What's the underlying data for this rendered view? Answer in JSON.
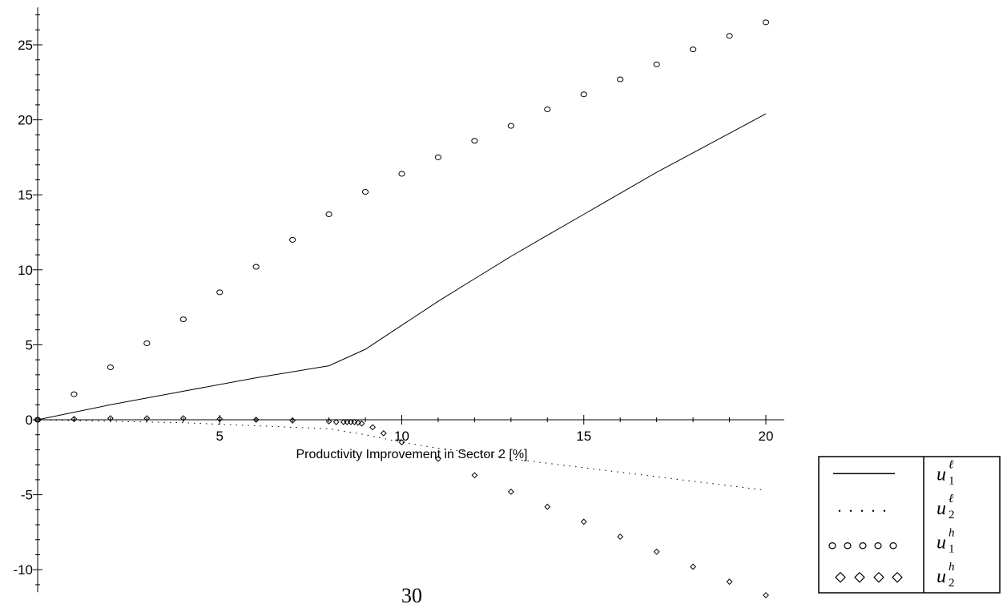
{
  "page_number": "30",
  "chart_data": {
    "type": "line",
    "xlabel": "Productivity Improvement in Sector 2 [%]",
    "ylabel": "",
    "xlim": [
      0,
      20.5
    ],
    "ylim": [
      -11.5,
      27.5
    ],
    "x_ticks": [
      5,
      10,
      15,
      20
    ],
    "y_ticks": [
      -10,
      -5,
      0,
      5,
      10,
      15,
      20,
      25
    ],
    "x_tick_labels": [
      "5",
      "10",
      "15",
      "20"
    ],
    "y_tick_labels": [
      "-10",
      "-5",
      "0",
      "5",
      "10",
      "15",
      "20",
      "25"
    ],
    "grid": false,
    "legend_position": "bottom-right",
    "series": [
      {
        "symbol": "u",
        "sub": "1",
        "sup": "ℓ",
        "style": "solid",
        "x": [
          0,
          2,
          4,
          6,
          8,
          9,
          10,
          11,
          12,
          13,
          14,
          15,
          16,
          17,
          18,
          19,
          20
        ],
        "y": [
          0,
          1.0,
          1.9,
          2.8,
          3.6,
          4.7,
          6.3,
          7.9,
          9.4,
          10.9,
          12.3,
          13.7,
          15.1,
          16.5,
          17.8,
          19.1,
          20.4
        ]
      },
      {
        "symbol": "u",
        "sub": "2",
        "sup": "ℓ",
        "style": "dotted",
        "x": [
          0,
          2,
          4,
          6,
          8,
          9,
          10,
          11,
          12,
          13,
          14,
          15,
          16,
          17,
          18,
          19,
          20
        ],
        "y": [
          0,
          -0.1,
          -0.2,
          -0.4,
          -0.6,
          -1.0,
          -1.5,
          -1.9,
          -2.2,
          -2.6,
          -2.9,
          -3.2,
          -3.5,
          -3.8,
          -4.1,
          -4.4,
          -4.7
        ]
      },
      {
        "symbol": "u",
        "sub": "1",
        "sup": "h",
        "style": "circle",
        "x": [
          0,
          1,
          2,
          3,
          4,
          5,
          6,
          7,
          8,
          9,
          10,
          11,
          12,
          13,
          14,
          15,
          16,
          17,
          18,
          19,
          20
        ],
        "y": [
          0,
          1.7,
          3.5,
          5.1,
          6.7,
          8.5,
          10.2,
          12.0,
          13.7,
          15.2,
          16.4,
          17.5,
          18.6,
          19.6,
          20.7,
          21.7,
          22.7,
          23.7,
          24.7,
          25.6,
          26.5
        ]
      },
      {
        "symbol": "u",
        "sub": "2",
        "sup": "h",
        "style": "diamond",
        "x": [
          0,
          1,
          2,
          3,
          4,
          5,
          6,
          7,
          8,
          8.2,
          8.4,
          8.5,
          8.6,
          8.7,
          8.8,
          8.9,
          9.2,
          9.5,
          10,
          11,
          12,
          13,
          14,
          15,
          16,
          17,
          18,
          19,
          20
        ],
        "y": [
          0,
          0.05,
          0.1,
          0.1,
          0.1,
          0.05,
          0.0,
          -0.05,
          -0.1,
          -0.15,
          -0.15,
          -0.15,
          -0.15,
          -0.15,
          -0.2,
          -0.25,
          -0.5,
          -0.9,
          -1.5,
          -2.6,
          -3.7,
          -4.8,
          -5.8,
          -6.8,
          -7.8,
          -8.8,
          -9.8,
          -10.8,
          -11.7
        ]
      }
    ]
  }
}
